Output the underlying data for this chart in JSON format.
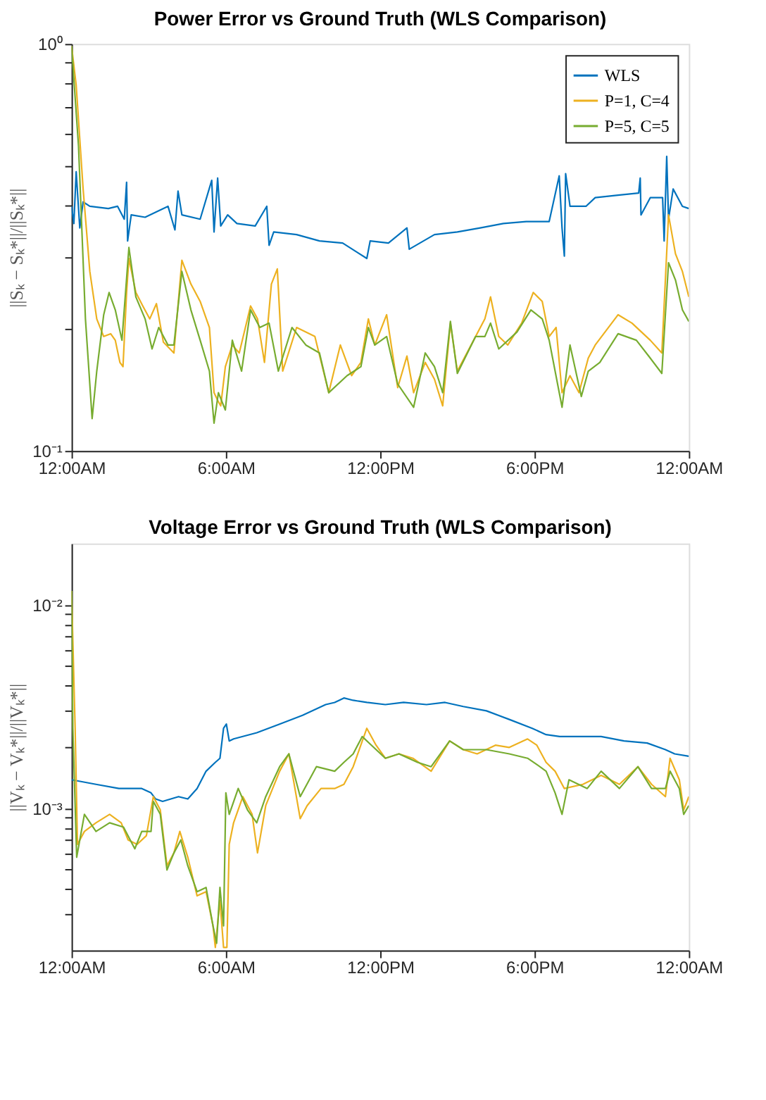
{
  "chart_data": [
    {
      "type": "line",
      "title": "Power Error vs Ground Truth (WLS Comparison)",
      "ylabel": "||Sₖ − Sₖ*||/||Sₖ*||",
      "log": "y",
      "grid": false,
      "legend": "top right",
      "xlim": [
        0,
        24
      ],
      "xticks": [
        {
          "value": 0,
          "label": "12:00AM"
        },
        {
          "value": 6,
          "label": "6:00AM"
        },
        {
          "value": 12,
          "label": "12:00PM"
        },
        {
          "value": 18,
          "label": "6:00PM"
        },
        {
          "value": 24,
          "label": "12:00AM"
        }
      ],
      "ylim": [
        0.1,
        1
      ],
      "yticks": [
        {
          "value": 0.1,
          "label": "10⁻¹"
        },
        {
          "value": 0.2,
          "label": null
        },
        {
          "value": 0.3,
          "label": null
        },
        {
          "value": 0.4,
          "label": null
        },
        {
          "value": 0.5,
          "label": null
        },
        {
          "value": 0.6,
          "label": null
        },
        {
          "value": 0.7,
          "label": null
        },
        {
          "value": 0.8,
          "label": null
        },
        {
          "value": 0.9,
          "label": null
        },
        {
          "value": 1,
          "label": "10⁰"
        }
      ],
      "series": [
        {
          "name": "WLS",
          "color": "#0072bd",
          "x": [
            0,
            0.09,
            0.18,
            0.32,
            0.45,
            0.71,
            1.43,
            1.79,
            2.05,
            2.14,
            2.18,
            2.32,
            2.86,
            3.39,
            3.75,
            4.02,
            4.14,
            4.29,
            5.0,
            5.45,
            5.54,
            5.68,
            5.8,
            6.07,
            6.43,
            7.14,
            7.59,
            7.68,
            7.86,
            8.75,
            9.64,
            10.54,
            11.48,
            11.61,
            12.32,
            13.04,
            13.13,
            14.11,
            15.0,
            15.89,
            16.79,
            17.68,
            18.57,
            18.96,
            19.07,
            19.16,
            19.21,
            19.38,
            20.0,
            20.36,
            21.25,
            22.05,
            22.11,
            22.14,
            22.5,
            22.98,
            23.04,
            23.14,
            23.21,
            23.39,
            23.75,
            24
          ],
          "values": [
            0.399,
            0.362,
            0.485,
            0.353,
            0.409,
            0.399,
            0.394,
            0.399,
            0.371,
            0.457,
            0.328,
            0.38,
            0.375,
            0.389,
            0.399,
            0.349,
            0.435,
            0.38,
            0.371,
            0.462,
            0.345,
            0.468,
            0.357,
            0.38,
            0.362,
            0.357,
            0.399,
            0.32,
            0.345,
            0.34,
            0.328,
            0.324,
            0.297,
            0.328,
            0.324,
            0.353,
            0.313,
            0.34,
            0.345,
            0.353,
            0.362,
            0.366,
            0.366,
            0.474,
            0.353,
            0.301,
            0.48,
            0.399,
            0.399,
            0.419,
            0.425,
            0.43,
            0.468,
            0.38,
            0.419,
            0.419,
            0.328,
            0.529,
            0.371,
            0.44,
            0.399,
            0.394
          ]
        },
        {
          "name": "P=1, C=4",
          "color": "#edb120",
          "x": [
            0,
            0.18,
            0.45,
            0.71,
            0.98,
            1.25,
            1.52,
            1.7,
            1.88,
            2.0,
            2.14,
            2.23,
            2.5,
            2.77,
            3.04,
            3.3,
            3.57,
            3.98,
            4.29,
            4.64,
            5.0,
            5.36,
            5.54,
            5.68,
            5.8,
            5.98,
            6.25,
            6.52,
            6.96,
            7.23,
            7.5,
            7.77,
            8.0,
            8.21,
            8.75,
            9.46,
            10.0,
            10.45,
            10.89,
            11.25,
            11.54,
            11.79,
            12.25,
            12.68,
            13.04,
            13.3,
            13.75,
            14.11,
            14.43,
            14.73,
            15.0,
            15.71,
            16.07,
            16.29,
            16.61,
            16.96,
            17.5,
            17.95,
            18.3,
            18.57,
            18.84,
            19.07,
            19.38,
            19.73,
            20.09,
            20.36,
            21.25,
            21.79,
            22.5,
            22.95,
            23.21,
            23.48,
            23.75,
            24
          ],
          "values": [
            0.988,
            0.792,
            0.44,
            0.276,
            0.211,
            0.191,
            0.194,
            0.187,
            0.165,
            0.161,
            0.245,
            0.297,
            0.245,
            0.227,
            0.211,
            0.23,
            0.185,
            0.174,
            0.294,
            0.257,
            0.233,
            0.201,
            0.139,
            0.133,
            0.129,
            0.161,
            0.182,
            0.174,
            0.227,
            0.211,
            0.165,
            0.257,
            0.28,
            0.157,
            0.201,
            0.191,
            0.139,
            0.182,
            0.153,
            0.165,
            0.211,
            0.182,
            0.216,
            0.143,
            0.171,
            0.139,
            0.165,
            0.15,
            0.129,
            0.206,
            0.157,
            0.191,
            0.211,
            0.239,
            0.191,
            0.182,
            0.206,
            0.245,
            0.233,
            0.191,
            0.201,
            0.139,
            0.153,
            0.139,
            0.169,
            0.182,
            0.216,
            0.206,
            0.187,
            0.174,
            0.38,
            0.305,
            0.276,
            0.239
          ]
        },
        {
          "name": "P=5, C=5",
          "color": "#77ac30",
          "x": [
            0,
            0.27,
            0.54,
            0.8,
            0.98,
            1.25,
            1.46,
            1.7,
            1.96,
            2.23,
            2.5,
            2.86,
            3.13,
            3.39,
            3.75,
            3.98,
            4.29,
            4.64,
            5.0,
            5.36,
            5.54,
            5.71,
            5.98,
            6.25,
            6.61,
            6.96,
            7.32,
            7.68,
            8.04,
            8.57,
            9.11,
            9.64,
            10.0,
            10.71,
            11.25,
            11.54,
            11.79,
            12.25,
            12.68,
            13.3,
            13.75,
            14.11,
            14.43,
            14.73,
            15.0,
            15.71,
            16.07,
            16.29,
            16.61,
            17.32,
            17.86,
            18.3,
            18.57,
            19.07,
            19.38,
            19.82,
            20.09,
            20.54,
            21.25,
            21.96,
            22.5,
            22.95,
            23.21,
            23.48,
            23.75,
            24
          ],
          "values": [
            0.988,
            0.562,
            0.211,
            0.12,
            0.157,
            0.216,
            0.245,
            0.222,
            0.187,
            0.316,
            0.239,
            0.211,
            0.178,
            0.201,
            0.182,
            0.182,
            0.276,
            0.222,
            0.187,
            0.157,
            0.117,
            0.139,
            0.126,
            0.187,
            0.157,
            0.222,
            0.201,
            0.206,
            0.157,
            0.201,
            0.182,
            0.174,
            0.139,
            0.153,
            0.161,
            0.201,
            0.182,
            0.191,
            0.146,
            0.128,
            0.174,
            0.161,
            0.139,
            0.208,
            0.155,
            0.191,
            0.191,
            0.206,
            0.178,
            0.196,
            0.222,
            0.211,
            0.187,
            0.128,
            0.182,
            0.136,
            0.157,
            0.165,
            0.194,
            0.187,
            0.169,
            0.155,
            0.29,
            0.263,
            0.222,
            0.208
          ]
        }
      ]
    },
    {
      "type": "line",
      "title": "Voltage Error vs Ground Truth (WLS Comparison)",
      "ylabel": "||Vₖ − Vₖ*||/||Vₖ*||",
      "log": "y",
      "grid": false,
      "legend": "top right",
      "xlim": [
        0,
        24
      ],
      "xticks": [
        {
          "value": 0,
          "label": "12:00AM"
        },
        {
          "value": 6,
          "label": "6:00AM"
        },
        {
          "value": 12,
          "label": "12:00PM"
        },
        {
          "value": 18,
          "label": "6:00PM"
        },
        {
          "value": 24,
          "label": "12:00AM"
        }
      ],
      "ylim": [
        0.0002,
        0.02
      ],
      "yticks": [
        {
          "value": 0.0003,
          "label": null
        },
        {
          "value": 0.0004,
          "label": null
        },
        {
          "value": 0.0005,
          "label": null
        },
        {
          "value": 0.0006,
          "label": null
        },
        {
          "value": 0.0007,
          "label": null
        },
        {
          "value": 0.0008,
          "label": null
        },
        {
          "value": 0.0009,
          "label": null
        },
        {
          "value": 0.001,
          "label": "10⁻³"
        },
        {
          "value": 0.002,
          "label": null
        },
        {
          "value": 0.003,
          "label": null
        },
        {
          "value": 0.004,
          "label": null
        },
        {
          "value": 0.005,
          "label": null
        },
        {
          "value": 0.006,
          "label": null
        },
        {
          "value": 0.007,
          "label": null
        },
        {
          "value": 0.008,
          "label": null
        },
        {
          "value": 0.009,
          "label": null
        },
        {
          "value": 0.01,
          "label": "10⁻²"
        }
      ],
      "series": [
        {
          "name": "WLS",
          "color": "#0072bd",
          "x": [
            0,
            0.95,
            1.84,
            2.73,
            3.09,
            3.27,
            3.54,
            4.16,
            4.52,
            4.88,
            5.23,
            5.59,
            5.77,
            5.91,
            6.02,
            6.13,
            6.3,
            7.2,
            8.09,
            8.98,
            9.88,
            10.23,
            10.59,
            10.95,
            11.48,
            12.2,
            12.91,
            13.8,
            14.52,
            15.23,
            16.13,
            17.02,
            17.91,
            18.45,
            18.98,
            19.7,
            20.59,
            21.48,
            22.38,
            23.09,
            23.45,
            24
          ],
          "values": [
            0.00138,
            0.00131,
            0.00125,
            0.00125,
            0.00119,
            0.00111,
            0.00108,
            0.00114,
            0.00111,
            0.00125,
            0.00152,
            0.00168,
            0.00176,
            0.00247,
            0.00259,
            0.00214,
            0.00219,
            0.00235,
            0.00259,
            0.00286,
            0.00323,
            0.00331,
            0.00348,
            0.00339,
            0.00331,
            0.00323,
            0.00331,
            0.00323,
            0.00331,
            0.00316,
            0.00301,
            0.00273,
            0.00247,
            0.0023,
            0.00225,
            0.00225,
            0.00225,
            0.00214,
            0.00209,
            0.00194,
            0.00185,
            0.0018
          ]
        },
        {
          "name": "P=1, C=4",
          "color": "#edb120",
          "x": [
            0,
            0.14,
            0.23,
            0.5,
            0.95,
            1.48,
            1.93,
            2.2,
            2.55,
            2.91,
            3.18,
            3.45,
            3.71,
            3.98,
            4.21,
            4.52,
            4.88,
            5.23,
            5.5,
            5.59,
            5.77,
            5.91,
            6.04,
            6.13,
            6.3,
            6.66,
            7.02,
            7.23,
            7.55,
            8.09,
            8.45,
            8.89,
            9.16,
            9.7,
            10.23,
            10.59,
            10.95,
            11.48,
            11.84,
            12.2,
            12.73,
            13.27,
            13.98,
            14.7,
            15.23,
            15.77,
            16.48,
            17.02,
            17.73,
            18.09,
            18.45,
            18.8,
            19.16,
            19.88,
            20.59,
            21.3,
            22.02,
            22.55,
            23.09,
            23.27,
            23.63,
            23.8,
            24
          ],
          "values": [
            0.0117,
            0.00247,
            0.000664,
            0.000769,
            0.000848,
            0.000933,
            0.000848,
            0.000698,
            0.000664,
            0.000733,
            0.00114,
            0.000981,
            0.000521,
            0.000603,
            0.000769,
            0.000574,
            0.000371,
            0.000389,
            0.000264,
            0.000207,
            0.000353,
            0.000207,
            0.000207,
            0.000664,
            0.000848,
            0.00114,
            0.000933,
            0.000603,
            0.00103,
            0.00152,
            0.00185,
            0.000889,
            0.00103,
            0.00125,
            0.00125,
            0.00131,
            0.0016,
            0.00247,
            0.00204,
            0.00176,
            0.00185,
            0.00176,
            0.00152,
            0.00214,
            0.00194,
            0.00185,
            0.00204,
            0.00199,
            0.00219,
            0.00204,
            0.00168,
            0.00152,
            0.00125,
            0.00131,
            0.00145,
            0.00131,
            0.0016,
            0.00131,
            0.00114,
            0.00176,
            0.00138,
            0.000981,
            0.00114
          ]
        },
        {
          "name": "P=5, C=5",
          "color": "#77ac30",
          "x": [
            0,
            0.05,
            0.2,
            0.5,
            0.95,
            1.48,
            2.02,
            2.46,
            2.73,
            3.09,
            3.18,
            3.45,
            3.71,
            3.98,
            4.25,
            4.52,
            4.88,
            5.23,
            5.5,
            5.64,
            5.77,
            5.91,
            6.0,
            6.13,
            6.48,
            6.84,
            7.2,
            7.55,
            8.09,
            8.45,
            8.89,
            9.52,
            10.23,
            10.59,
            10.95,
            11.3,
            11.66,
            12.2,
            12.73,
            13.45,
            13.98,
            14.7,
            15.23,
            16.13,
            17.02,
            17.73,
            18.09,
            18.45,
            18.8,
            19.07,
            19.34,
            20.05,
            20.59,
            21.3,
            22.02,
            22.55,
            23.09,
            23.27,
            23.63,
            23.8,
            24
          ],
          "values": [
            0.0117,
            0.00247,
            0.000574,
            0.000933,
            0.000769,
            0.000848,
            0.000807,
            0.000632,
            0.000769,
            0.000769,
            0.00108,
            0.000933,
            0.000497,
            0.000603,
            0.000698,
            0.000521,
            0.000389,
            0.000408,
            0.000264,
            0.000217,
            0.000408,
            0.000264,
            0.00119,
            0.000933,
            0.00125,
            0.000981,
            0.000848,
            0.00114,
            0.0016,
            0.00185,
            0.00114,
            0.0016,
            0.00152,
            0.00168,
            0.00185,
            0.00225,
            0.00204,
            0.00176,
            0.00185,
            0.00168,
            0.0016,
            0.00214,
            0.00194,
            0.00194,
            0.00185,
            0.00176,
            0.00164,
            0.00152,
            0.00119,
            0.000933,
            0.00138,
            0.00125,
            0.00152,
            0.00125,
            0.0016,
            0.00125,
            0.00125,
            0.00152,
            0.00125,
            0.000933,
            0.00103
          ]
        }
      ]
    }
  ]
}
